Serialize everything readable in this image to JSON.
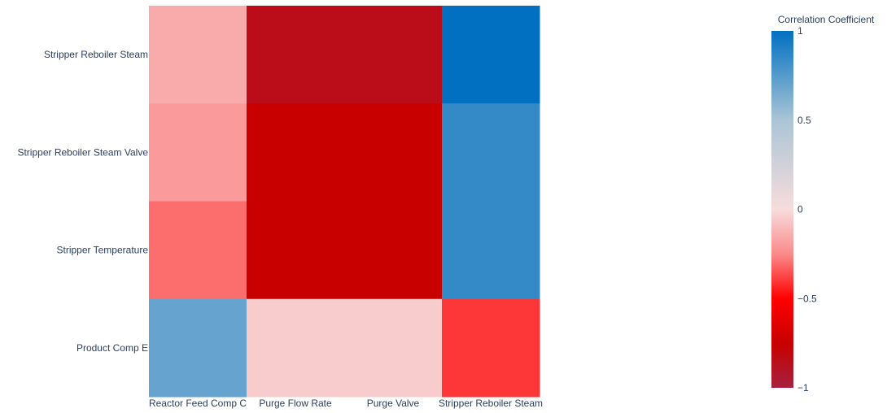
{
  "chart_data": {
    "type": "heatmap",
    "x_categories": [
      "Reactor Feed Comp C",
      "Purge Flow Rate",
      "Purge Valve",
      "Stripper Reboiler Steam"
    ],
    "y_categories": [
      "Stripper Reboiler Steam",
      "Stripper Reboiler Steam Valve",
      "Stripper Temperature",
      "Product Comp E"
    ],
    "values": [
      [
        -0.15,
        -0.85,
        -0.85,
        1.0
      ],
      [
        -0.2,
        -0.75,
        -0.75,
        0.85
      ],
      [
        -0.3,
        -0.75,
        -0.75,
        0.85
      ],
      [
        0.7,
        -0.05,
        -0.05,
        -0.4
      ]
    ],
    "colorbar": {
      "title": "Correlation Coefficient",
      "range": [
        -1,
        1
      ],
      "tick_labels": [
        "1",
        "0.5",
        "0",
        "−0.5",
        "−1"
      ],
      "tick_values": [
        1,
        0.5,
        0,
        -0.5,
        -1
      ]
    },
    "colorscale": [
      [
        -1,
        "#a6203f"
      ],
      [
        -0.75,
        "#c80000"
      ],
      [
        -0.5,
        "#ff0000"
      ],
      [
        -0.25,
        "#fb8a8a"
      ],
      [
        0,
        "#f7dcdc"
      ],
      [
        0.5,
        "#aac5d6"
      ],
      [
        1,
        "#0170c1"
      ]
    ]
  }
}
